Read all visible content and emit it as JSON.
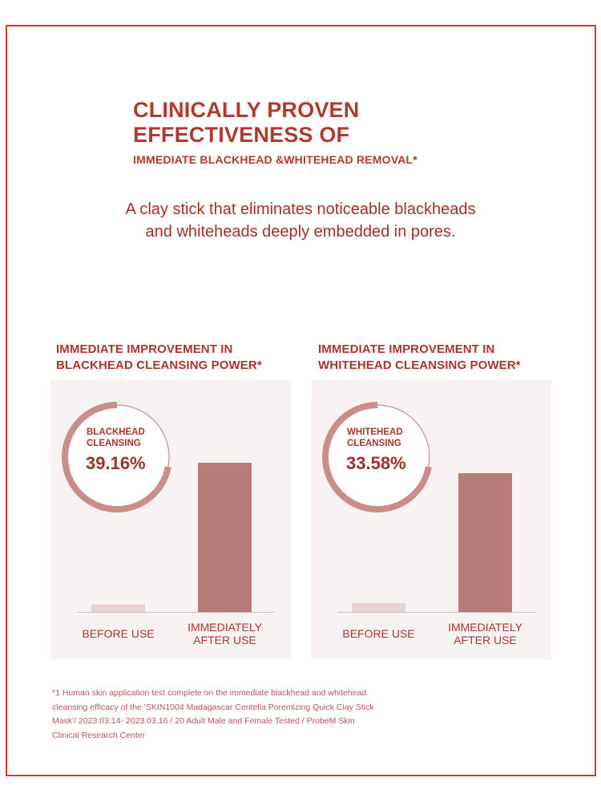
{
  "header": {
    "title_line1": "CLINICALLY PROVEN",
    "title_line2": "EFFECTIVENESS OF",
    "subtitle": "IMMEDIATE BLACKHEAD &WHITEHEAD REMOVAL*"
  },
  "tagline": {
    "line1": "A clay stick that eliminates noticeable blackheads",
    "line2": "and whiteheads deeply embedded in pores."
  },
  "colors": {
    "accent": "#b03a2e",
    "frame": "#d13a35",
    "panel_bg": "#f8f3f2",
    "bar_before": "#e7d1d0",
    "bar_after": "#b77b79",
    "ring": "#c98e8c"
  },
  "chart_data": [
    {
      "type": "bar",
      "title_line1": "IMMEDIATE IMPROVEMENT IN",
      "title_line2": "BLACKHEAD CLEANSING POWER*",
      "badge_line1": "BLACKHEAD",
      "badge_line2": "CLEANSING",
      "badge_value": "39.16%",
      "improvement_percent": 39.16,
      "categories": [
        "BEFORE USE",
        "IMMEDIATELY AFTER USE"
      ],
      "category_labels": [
        [
          "BEFORE USE"
        ],
        [
          "IMMEDIATELY",
          "AFTER USE"
        ]
      ],
      "values": [
        5,
        100
      ],
      "ylim": [
        0,
        100
      ]
    },
    {
      "type": "bar",
      "title_line1": "IMMEDIATE IMPROVEMENT IN",
      "title_line2": "WHITEHEAD CLEANSING POWER*",
      "badge_line1": "WHITEHEAD",
      "badge_line2": "CLEANSING",
      "badge_value": "33.58%",
      "improvement_percent": 33.58,
      "categories": [
        "BEFORE USE",
        "IMMEDIATELY AFTER USE"
      ],
      "category_labels": [
        [
          "BEFORE USE"
        ],
        [
          "IMMEDIATELY",
          "AFTER USE"
        ]
      ],
      "values": [
        6,
        93
      ],
      "ylim": [
        0,
        100
      ]
    }
  ],
  "footnote": {
    "line1": "*1 Human skin application test complete on the immediate blackhead and whitehead",
    "line2": "cleansing efficacy of the 'SKIN1004 Madagascar Centella Poremizing Quick Clay Stick",
    "line3": "Mask'/ 2023.03.14- 2023.03.16 / 20 Adult Male and Female Tested / ProbeM Skin",
    "line4": "Clinical Research Center"
  }
}
